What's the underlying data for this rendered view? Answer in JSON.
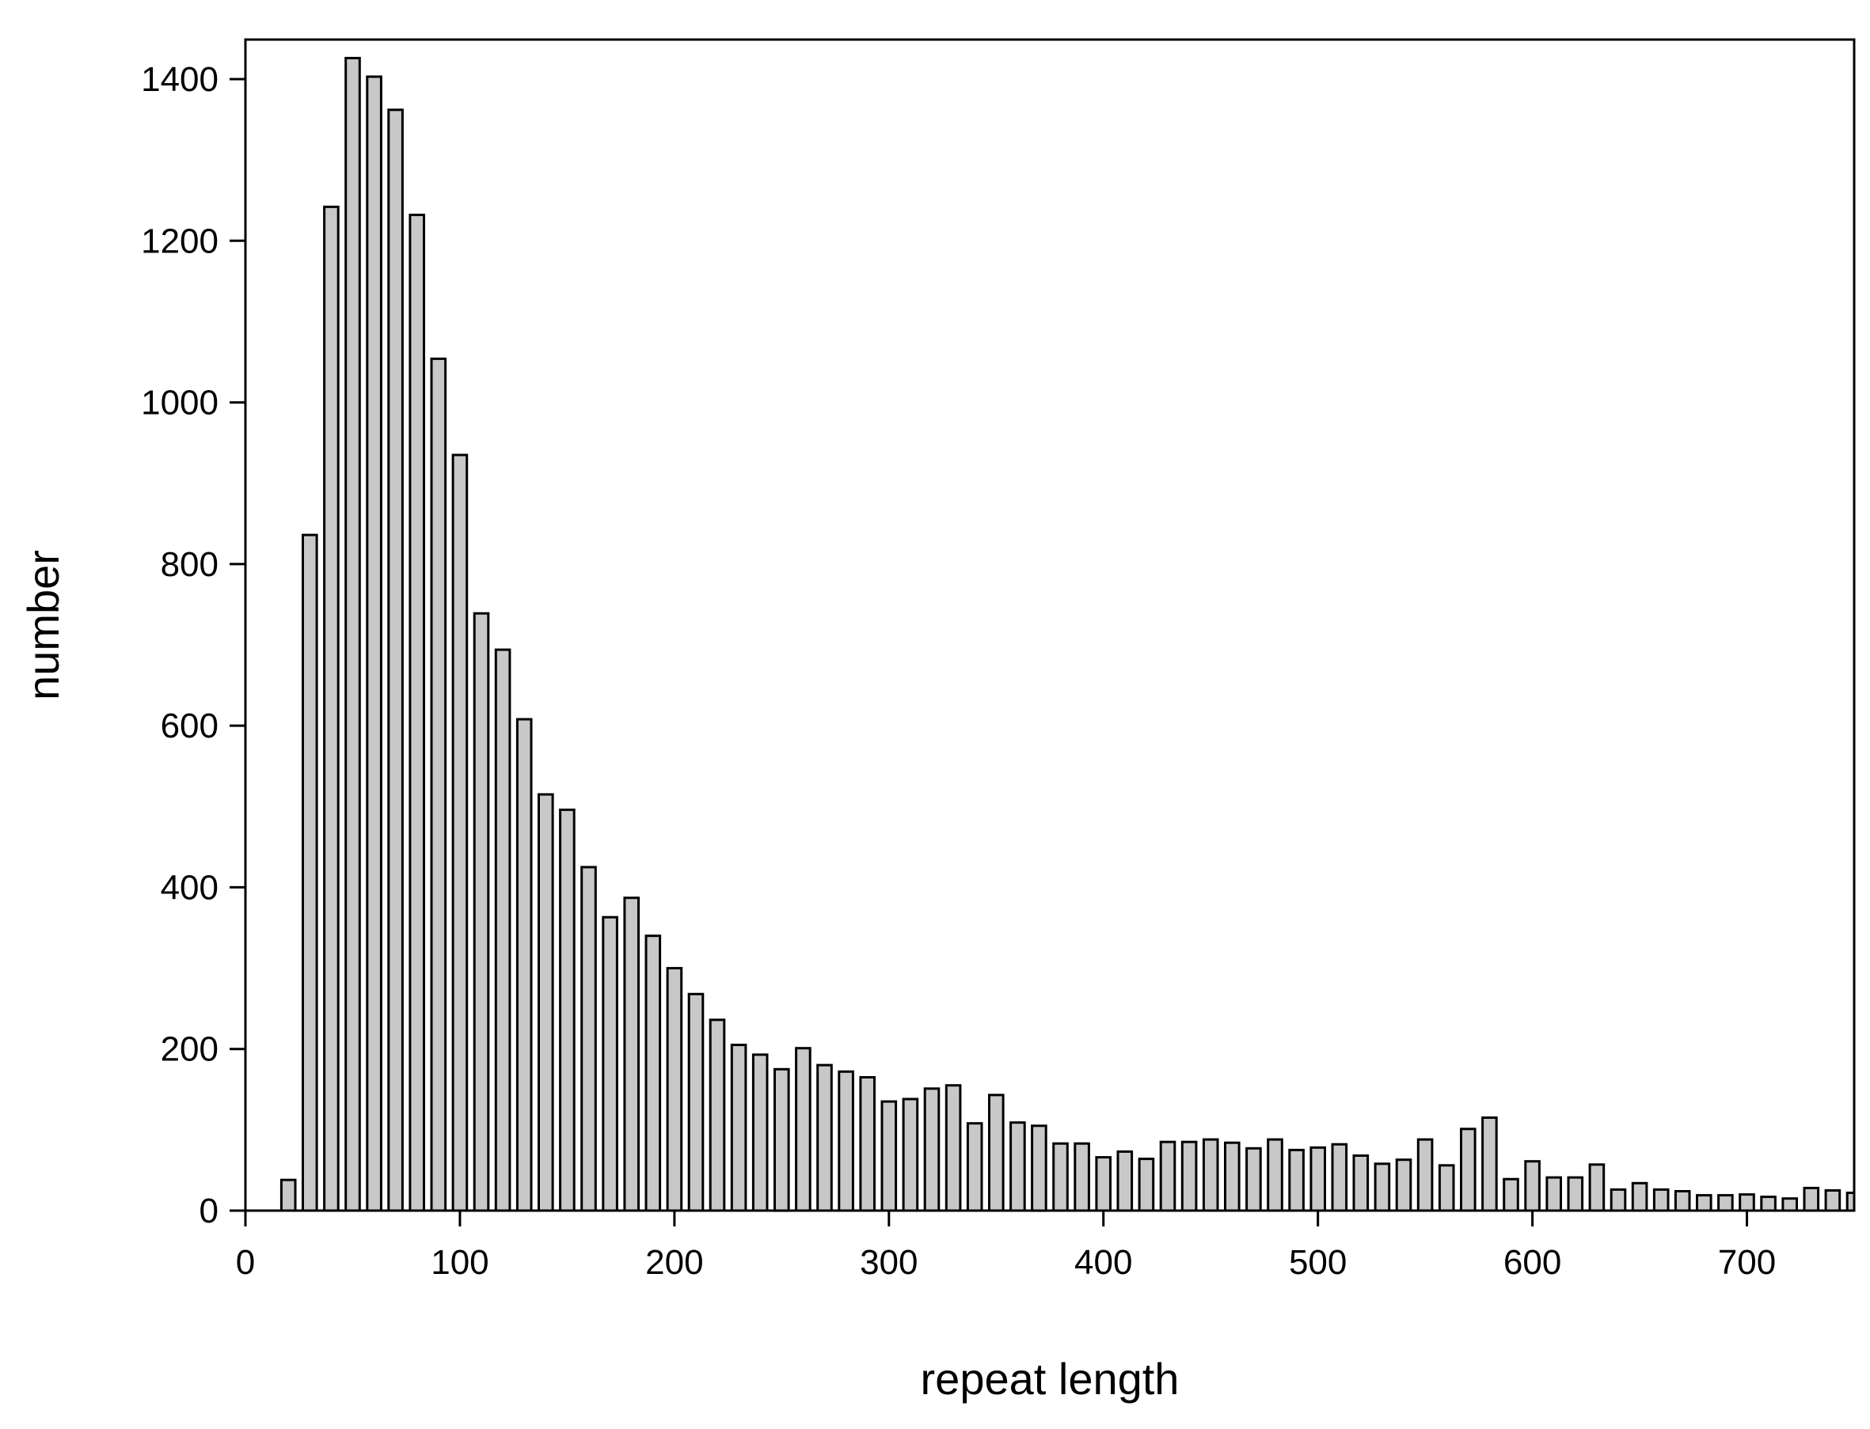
{
  "chart_data": {
    "type": "bar",
    "title": "",
    "xlabel": "repeat length",
    "ylabel": "number",
    "xlim": [
      0,
      750
    ],
    "ylim": [
      0,
      1400
    ],
    "x_ticks": [
      0,
      100,
      200,
      300,
      400,
      500,
      600,
      700
    ],
    "y_ticks": [
      0,
      200,
      400,
      600,
      800,
      1000,
      1200,
      1400
    ],
    "grid": false,
    "legend": "none",
    "bar_width": 6.5,
    "bar_fill": "#c8c8c8",
    "bar_stroke": "#000000",
    "x": [
      20,
      30,
      40,
      50,
      60,
      70,
      80,
      90,
      100,
      110,
      120,
      130,
      140,
      150,
      160,
      170,
      180,
      190,
      200,
      210,
      220,
      230,
      240,
      250,
      260,
      270,
      280,
      290,
      300,
      310,
      320,
      330,
      340,
      350,
      360,
      370,
      380,
      390,
      400,
      410,
      420,
      430,
      440,
      450,
      460,
      470,
      480,
      490,
      500,
      510,
      520,
      530,
      540,
      550,
      560,
      570,
      580,
      590,
      600,
      610,
      620,
      630,
      640,
      650,
      660,
      670,
      680,
      690,
      700,
      710,
      720,
      730,
      740,
      750
    ],
    "values": [
      38,
      836,
      1242,
      1426,
      1403,
      1362,
      1232,
      1054,
      935,
      739,
      694,
      608,
      515,
      496,
      425,
      363,
      387,
      340,
      300,
      268,
      236,
      205,
      193,
      175,
      201,
      180,
      172,
      165,
      135,
      138,
      151,
      155,
      108,
      143,
      109,
      105,
      83,
      83,
      66,
      73,
      64,
      85,
      85,
      88,
      84,
      77,
      88,
      75,
      78,
      82,
      68,
      58,
      63,
      88,
      56,
      101,
      115,
      39,
      61,
      41,
      41,
      57,
      26,
      34,
      26,
      24,
      19,
      19,
      20,
      17,
      15,
      28,
      25,
      22
    ]
  }
}
